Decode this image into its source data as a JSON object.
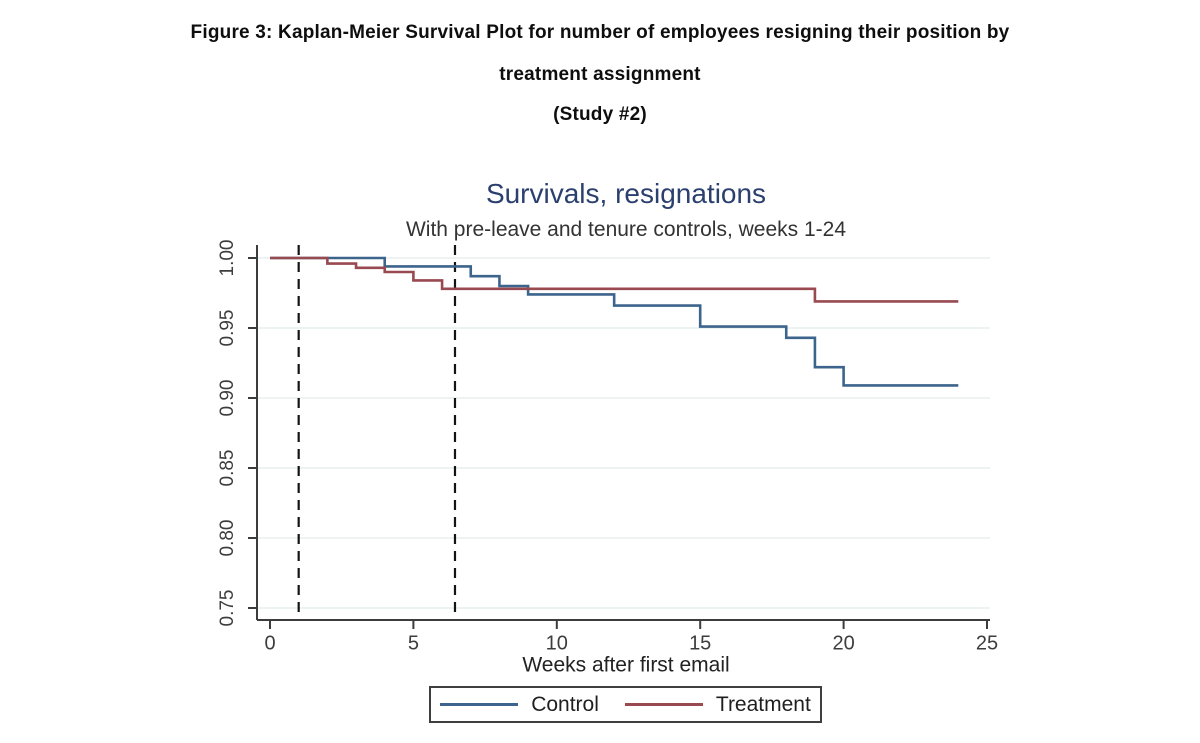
{
  "figure": {
    "title_line1": "Figure 3: Kaplan-Meier Survival Plot for number of employees resigning their position by",
    "title_line2": "treatment assignment",
    "title_line3": "(Study #2)"
  },
  "chart_data": {
    "type": "line",
    "style": "kaplan-meier-step",
    "title": "Survivals, resignations",
    "subtitle": "With pre-leave and tenure controls, weeks 1-24",
    "xlabel": "Weeks after first email",
    "ylabel": "",
    "xlim": [
      0,
      25
    ],
    "xticks": [
      0,
      5,
      10,
      15,
      20,
      25
    ],
    "xtick_labels": [
      "0",
      "5",
      "10",
      "15",
      "20",
      "25"
    ],
    "ylim": [
      0.75,
      1.0
    ],
    "yticks": [
      0.75,
      0.8,
      0.85,
      0.9,
      0.95,
      1.0
    ],
    "ytick_labels": [
      "0.75",
      "0.80",
      "0.85",
      "0.90",
      "0.95",
      "1.00"
    ],
    "grid": "horizontal-only",
    "curve_start_week": 0,
    "curve_end_week": 24,
    "reference_lines": [
      {
        "week": 1.0,
        "style": "dashed"
      },
      {
        "week": 6.45,
        "style": "dashed"
      }
    ],
    "series": [
      {
        "name": "Control",
        "color": "#3d648c",
        "steps": [
          [
            0,
            1.0
          ],
          [
            4,
            0.994
          ],
          [
            7,
            0.987
          ],
          [
            8,
            0.98
          ],
          [
            9,
            0.974
          ],
          [
            12,
            0.966
          ],
          [
            15,
            0.951
          ],
          [
            18,
            0.943
          ],
          [
            19,
            0.922
          ],
          [
            20,
            0.909
          ]
        ]
      },
      {
        "name": "Treatment",
        "color": "#984a50",
        "steps": [
          [
            0,
            1.0
          ],
          [
            2,
            0.996
          ],
          [
            3,
            0.993
          ],
          [
            4,
            0.99
          ],
          [
            5,
            0.984
          ],
          [
            6,
            0.978
          ],
          [
            19,
            0.969
          ]
        ]
      }
    ],
    "legend_position": "bottom-center"
  },
  "colors": {
    "title_navy": "#2b406e",
    "subtitle_text": "#333333",
    "tick_text": "#3d3d3d",
    "axis": "#3c3c3c",
    "gridline": "#edf2f2",
    "dashed_line": "#141414",
    "figure_title_text": "#0e0e0e"
  }
}
